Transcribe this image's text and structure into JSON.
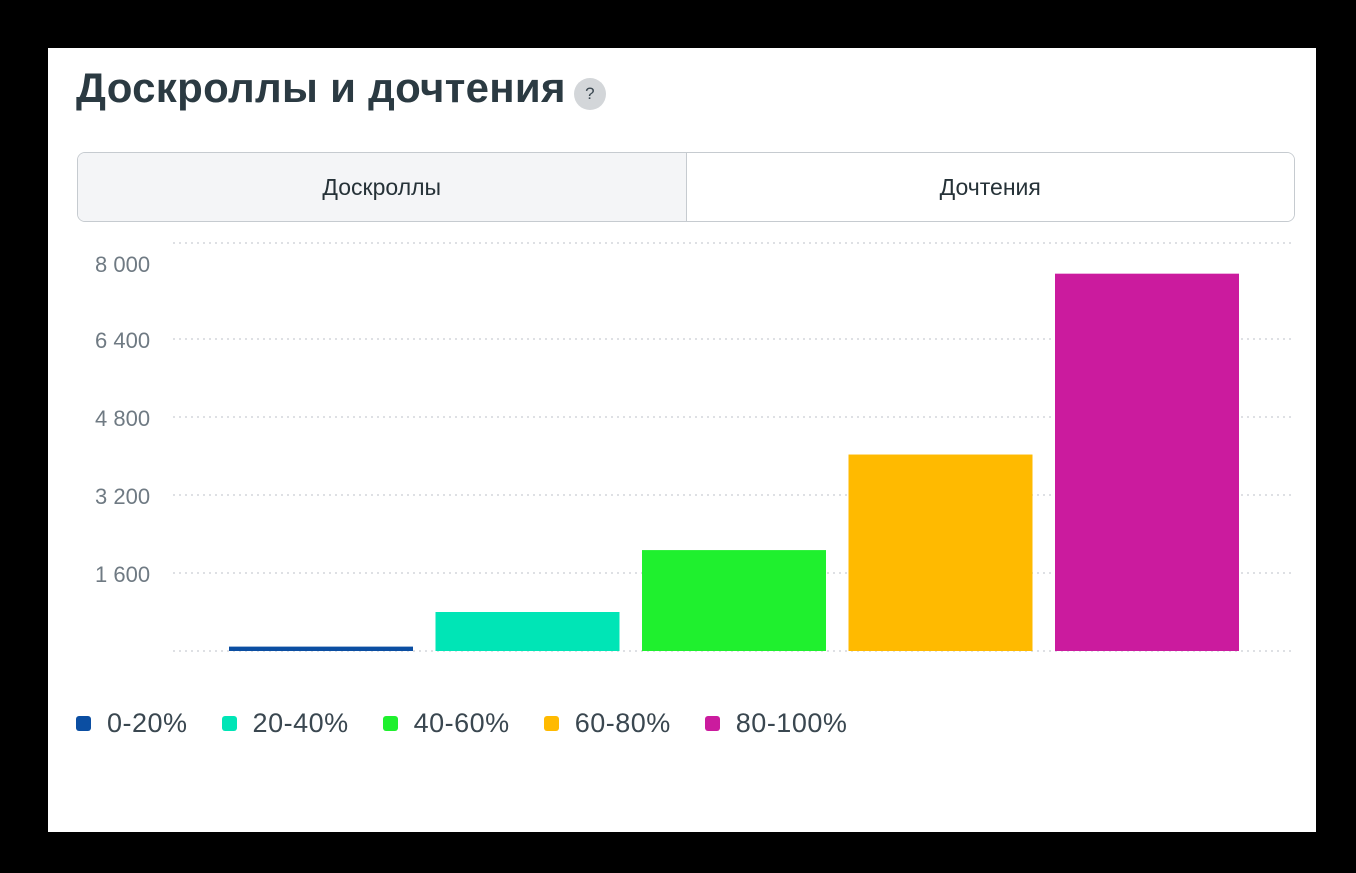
{
  "header": {
    "title": "Доскроллы и дочтения",
    "help_label": "?"
  },
  "tabs": [
    {
      "label": "Доскроллы",
      "active": true
    },
    {
      "label": "Дочтения",
      "active": false
    }
  ],
  "chart_data": {
    "type": "bar",
    "title": "",
    "xlabel": "",
    "ylabel": "",
    "categories": [
      "0-20%",
      "20-40%",
      "40-60%",
      "60-80%",
      "80-100%"
    ],
    "values": [
      90,
      800,
      2070,
      4030,
      7740
    ],
    "colors": [
      "#0b4ea2",
      "#00e5b6",
      "#1ff02e",
      "#ffba00",
      "#cb1b9e"
    ],
    "yticks": [
      1600,
      3200,
      4800,
      6400,
      8000
    ],
    "ytick_labels": [
      "1 600",
      "3 200",
      "4 800",
      "6 400",
      "8 000"
    ],
    "ylim": [
      0,
      8000
    ],
    "grid": true,
    "legend_position": "bottom-left"
  }
}
